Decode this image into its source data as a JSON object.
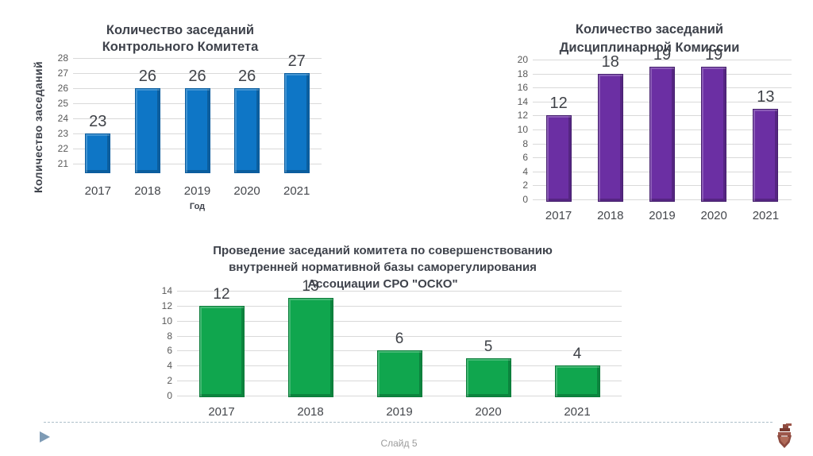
{
  "page": {
    "background": "#FFFFFF"
  },
  "footer": {
    "slide_label": "Слайд 5",
    "nav_icon": "play-triangle-icon",
    "logo_icon": "osko-emblem-logo",
    "separator_color": "#AEBFC9",
    "nav_color": "#7E9BB5"
  },
  "chart_data": [
    {
      "type": "bar",
      "title": "Количество заседаний Контрольного Комитета",
      "title_lines": [
        "Количество заседаний",
        "Контрольного Комитета"
      ],
      "categories": [
        "2017",
        "2018",
        "2019",
        "2020",
        "2021"
      ],
      "values": [
        23,
        26,
        26,
        26,
        27
      ],
      "xlabel": "Год",
      "ylabel": "Количество заседаний",
      "ylim": [
        21,
        28
      ],
      "ytick_step": 1,
      "grid": true,
      "legend": false,
      "data_labels": true,
      "bar_color": "#0E76C6",
      "bar_edge_color": "#0A5C9E"
    },
    {
      "type": "bar",
      "title": "Количество заседаний Дисциплинарной Комиссии",
      "title_lines": [
        "Количество заседаний",
        "Дисциплинарной Комиссии"
      ],
      "categories": [
        "2017",
        "2018",
        "2019",
        "2020",
        "2021"
      ],
      "values": [
        12,
        18,
        19,
        19,
        13
      ],
      "xlabel": "",
      "ylabel": "",
      "ylim": [
        0,
        20
      ],
      "ytick_step": 2,
      "grid": true,
      "legend": false,
      "data_labels": true,
      "bar_color": "#6B2FA3",
      "bar_edge_color": "#46206E"
    },
    {
      "type": "bar",
      "title": "Проведение заседаний комитета по совершенствованию внутренней нормативной базы саморегулирования Ассоциации СРО \"ОСКО\"",
      "title_lines": [
        "Проведение заседаний комитета по совершенствованию",
        "внутренней нормативной базы саморегулирования",
        "Ассоциации СРО \"ОСКО\""
      ],
      "categories": [
        "2017",
        "2018",
        "2019",
        "2020",
        "2021"
      ],
      "values": [
        12,
        13,
        6,
        5,
        4
      ],
      "xlabel": "",
      "ylabel": "",
      "ylim": [
        0,
        14
      ],
      "ytick_step": 2,
      "grid": true,
      "legend": false,
      "data_labels": true,
      "bar_color": "#10A64E",
      "bar_edge_color": "#0B7B39"
    }
  ]
}
